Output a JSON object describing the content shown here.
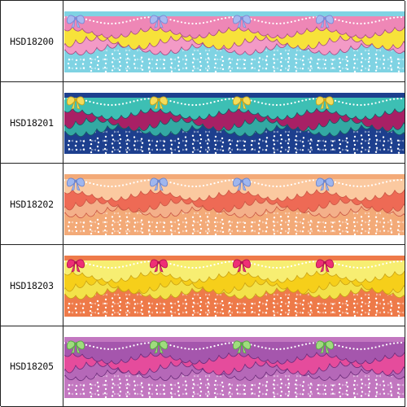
{
  "products": [
    {
      "code": "HSD18200",
      "colors": {
        "bg": "#7fd3e3",
        "top": "#ee87b6",
        "mid": "#f7e23a",
        "mid2": "#f39ac6",
        "bow": "#a6b9f0",
        "bowEdge": "#7a8bd6",
        "outline": "#a24a82",
        "dot": "#ffffff"
      }
    },
    {
      "code": "HSD18201",
      "colors": {
        "bg": "#1d3f8e",
        "top": "#3dbfb4",
        "mid": "#a82065",
        "mid2": "#33a9a3",
        "bow": "#f5dc5a",
        "bowEdge": "#c7a520",
        "outline": "#1a5a62",
        "dot": "#ffffff"
      }
    },
    {
      "code": "HSD18202",
      "colors": {
        "bg": "#f3aa78",
        "top": "#fbc9a0",
        "mid": "#ee6a55",
        "mid2": "#f4b08a",
        "bow": "#9fb6ee",
        "bowEdge": "#6f86cc",
        "outline": "#c95544",
        "dot": "#ffffff"
      }
    },
    {
      "code": "HSD18203",
      "colors": {
        "bg": "#ee7a49",
        "top": "#f7ee72",
        "mid": "#f6cf1a",
        "mid2": "#f3e24a",
        "bow": "#ee2f76",
        "bowEdge": "#b4154f",
        "outline": "#c9a114",
        "dot": "#ffffff"
      }
    },
    {
      "code": "HSD18205",
      "colors": {
        "bg": "#c277c0",
        "top": "#a556ad",
        "mid": "#e54c9c",
        "mid2": "#b568b8",
        "bow": "#9fdc7d",
        "bowEdge": "#5ba848",
        "outline": "#6b2b7a",
        "dot": "#ffffff"
      }
    }
  ]
}
